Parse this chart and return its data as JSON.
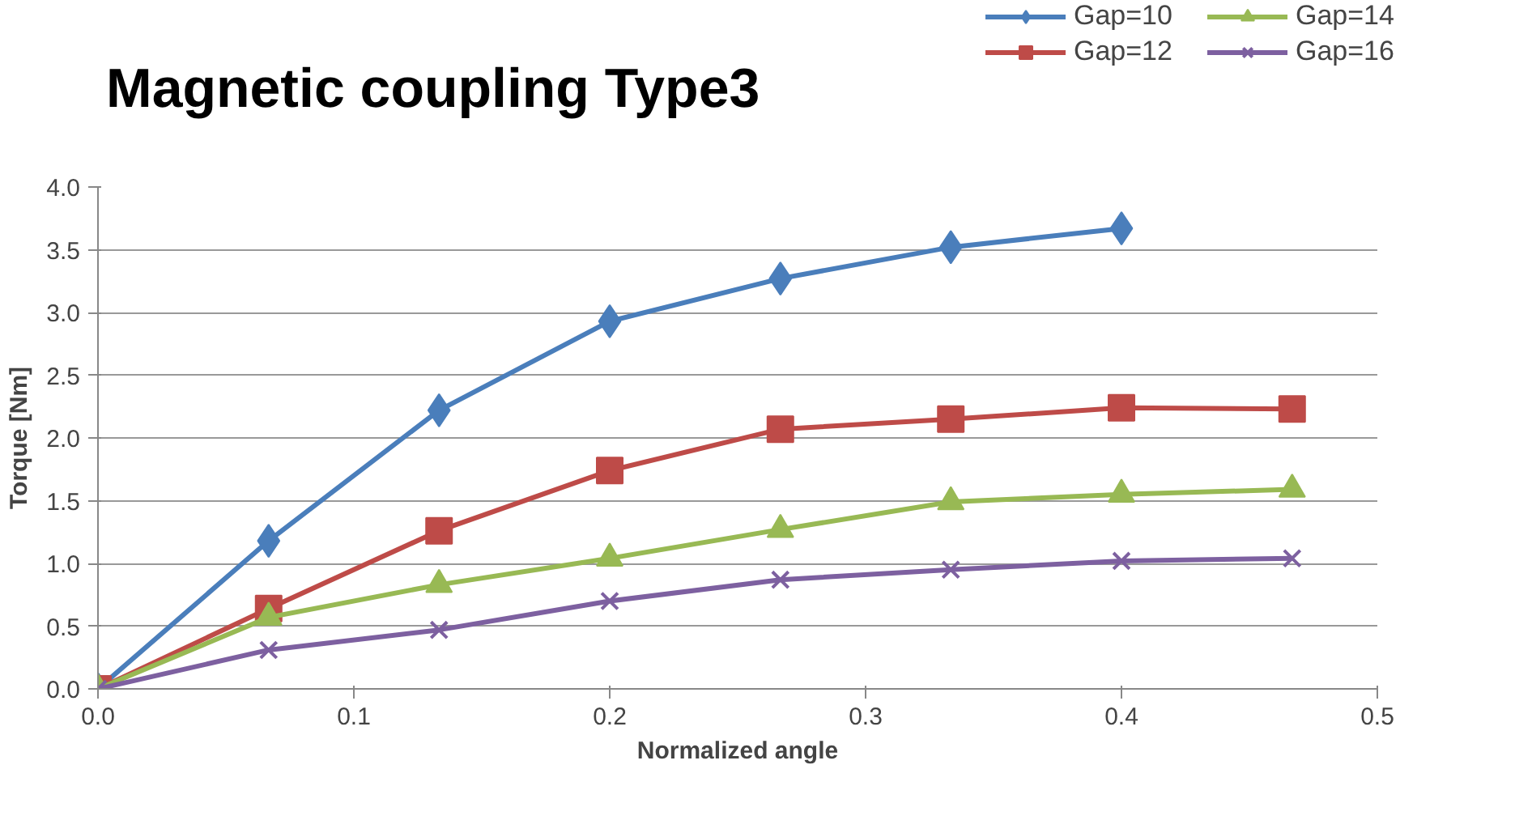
{
  "chart_data": {
    "type": "line",
    "title": "Magnetic coupling Type3",
    "xlabel": "Normalized angle",
    "ylabel": "Torque [Nm]",
    "x": [
      0,
      0.0667,
      0.1333,
      0.2,
      0.2667,
      0.3333,
      0.4,
      0.4667
    ],
    "series": [
      {
        "name": "Gap=10",
        "color": "#4a7ebb",
        "marker": "diamond",
        "values": [
          0,
          1.18,
          2.22,
          2.93,
          3.27,
          3.52,
          3.67,
          null
        ]
      },
      {
        "name": "Gap=12",
        "color": "#be4b48",
        "marker": "square",
        "values": [
          0,
          0.64,
          1.26,
          1.74,
          2.07,
          2.15,
          2.24,
          2.23
        ]
      },
      {
        "name": "Gap=14",
        "color": "#98b954",
        "marker": "triangle",
        "values": [
          0,
          0.57,
          0.83,
          1.04,
          1.27,
          1.49,
          1.55,
          1.59
        ]
      },
      {
        "name": "Gap=16",
        "color": "#7d60a0",
        "marker": "cross",
        "values": [
          0,
          0.31,
          0.47,
          0.7,
          0.87,
          0.95,
          1.02,
          1.04
        ]
      }
    ],
    "xlim": [
      0,
      0.5
    ],
    "xticks": [
      {
        "value": 0,
        "label": "0.0"
      },
      0.1,
      0.2,
      0.3,
      0.4,
      0.5
    ],
    "ylim": [
      0,
      4
    ],
    "yticks": [
      {
        "value": 0,
        "label": "0.0"
      },
      0.5,
      {
        "value": 1,
        "label": "1.0"
      },
      1.5,
      {
        "value": 2,
        "label": "2.0"
      },
      2.5,
      {
        "value": 3,
        "label": "3.0"
      },
      3.5,
      {
        "value": 4,
        "label": "4.0"
      }
    ],
    "grid": "y",
    "legend": "top right",
    "line_style": "solid"
  }
}
